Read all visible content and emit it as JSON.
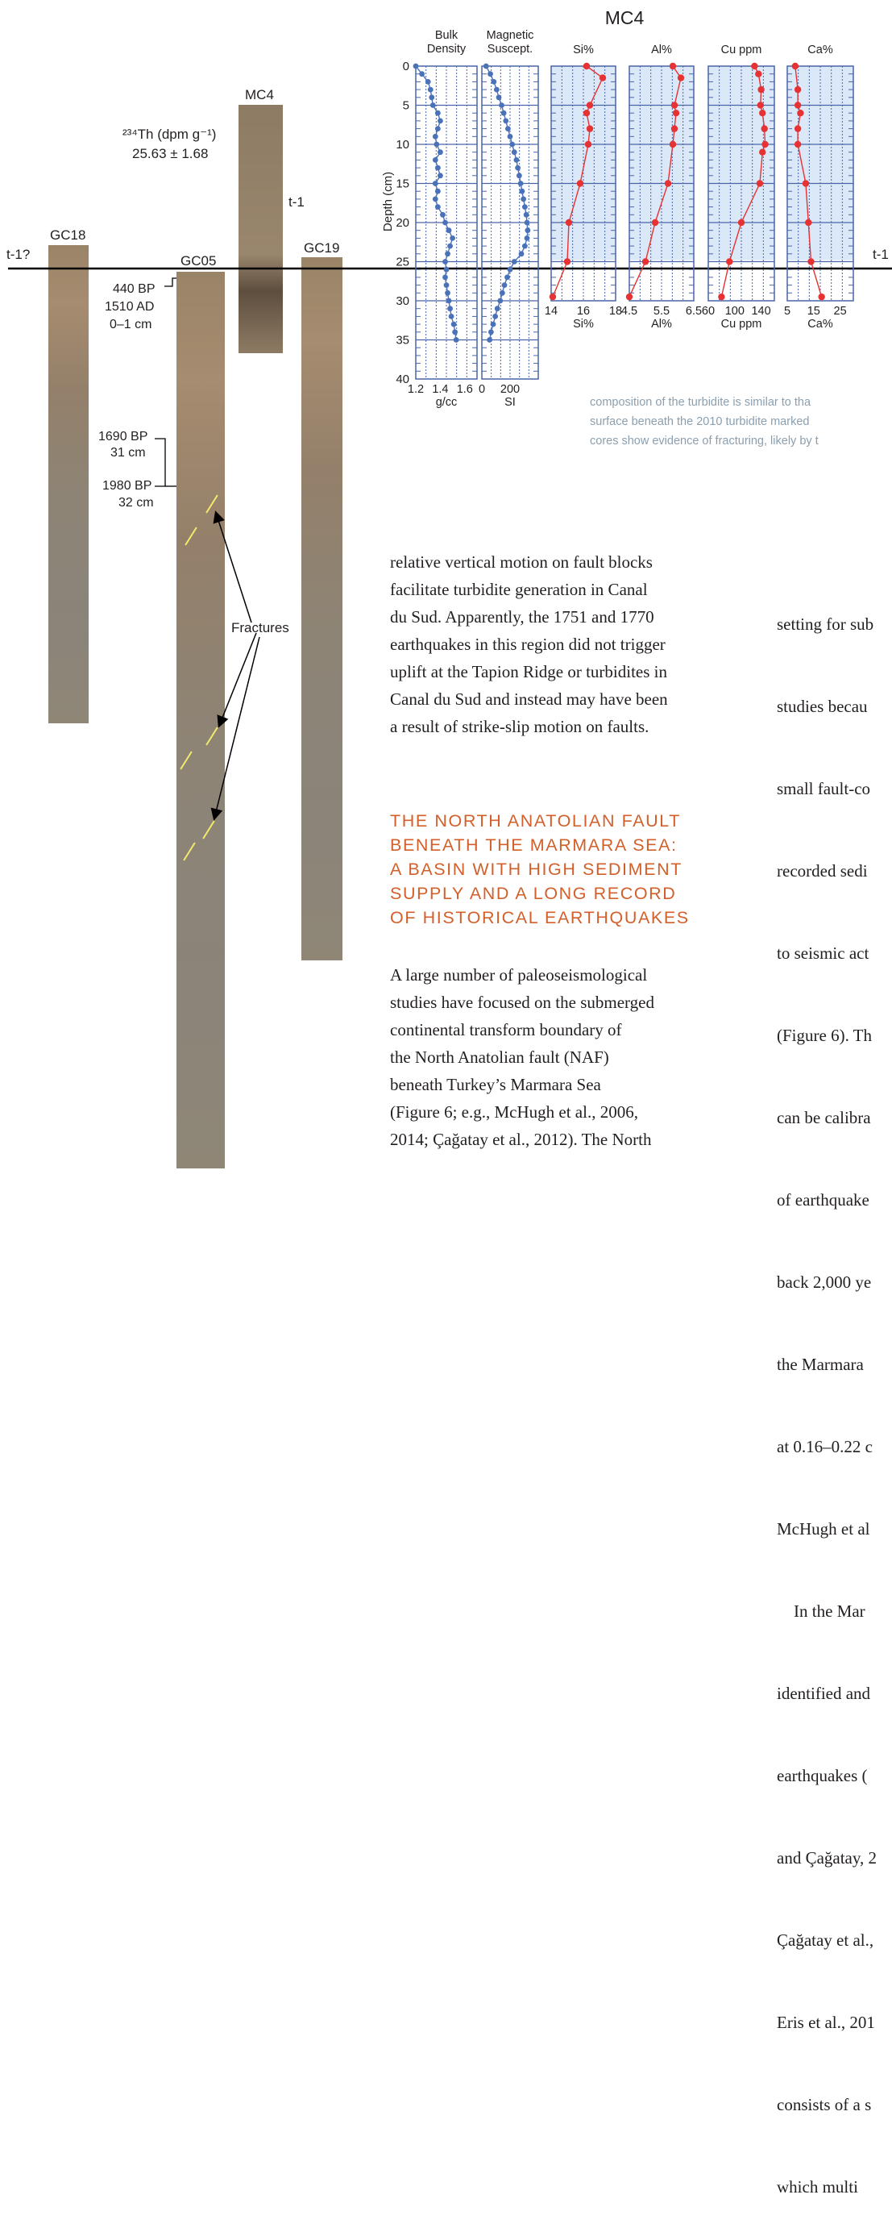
{
  "figure": {
    "cores": {
      "gc18": "GC18",
      "gc05": "GC05",
      "mc4": "MC4",
      "gc19": "GC19"
    },
    "th_label_html": "²³⁴Th (dpm g⁻¹)",
    "th_value": "25.63 ± 1.68",
    "t1_mc4": "t-1",
    "t1_left": "t-1?",
    "t1_right": "t-1",
    "age_440": "440 BP",
    "age_1510": "1510 AD",
    "age_0_1": "0–1 cm",
    "age_1690": "1690 BP",
    "age_31": "31 cm",
    "age_1980": "1980 BP",
    "age_32": "32 cm",
    "fractures": "Fractures"
  },
  "chart_data": {
    "type": "line",
    "title": "MC4",
    "ylabel": "Depth (cm)",
    "ylim": [
      0,
      40
    ],
    "y_ticks": [
      "0",
      "5",
      "10",
      "15",
      "20",
      "25",
      "30",
      "35",
      "40"
    ],
    "panels": [
      {
        "name_top": "Bulk\nDensity",
        "xlabel": "g/cc",
        "x_ticks": [
          "1.2",
          "1.4",
          "1.6"
        ],
        "xlim": [
          1.2,
          1.7
        ],
        "color": "#4a72b8",
        "depth": [
          0,
          1,
          2,
          3,
          4,
          5,
          6,
          7,
          8,
          9,
          10,
          11,
          12,
          13,
          14,
          15,
          16,
          17,
          18,
          19,
          20,
          21,
          22,
          23,
          24,
          25,
          26,
          27,
          28,
          29,
          30,
          31,
          32,
          33,
          34,
          35
        ],
        "values": [
          1.2,
          1.25,
          1.3,
          1.32,
          1.33,
          1.34,
          1.38,
          1.4,
          1.38,
          1.36,
          1.37,
          1.4,
          1.36,
          1.38,
          1.4,
          1.36,
          1.38,
          1.36,
          1.38,
          1.42,
          1.44,
          1.47,
          1.5,
          1.48,
          1.46,
          1.44,
          1.45,
          1.44,
          1.45,
          1.46,
          1.47,
          1.48,
          1.49,
          1.51,
          1.52,
          1.53
        ]
      },
      {
        "name_top": "Magnetic\nSuscept.",
        "xlabel": "SI",
        "x_ticks": [
          "0",
          "200"
        ],
        "xlim": [
          0,
          400
        ],
        "color": "#4a72b8",
        "depth": [
          0,
          1,
          2,
          3,
          4,
          5,
          6,
          7,
          8,
          9,
          10,
          11,
          12,
          13,
          14,
          15,
          16,
          17,
          18,
          19,
          20,
          21,
          22,
          23,
          24,
          25,
          26,
          27,
          28,
          29,
          30,
          31,
          32,
          33,
          34,
          35
        ],
        "values": [
          30,
          60,
          85,
          105,
          120,
          140,
          155,
          170,
          185,
          200,
          215,
          230,
          245,
          255,
          265,
          275,
          285,
          295,
          305,
          315,
          320,
          325,
          320,
          305,
          280,
          230,
          200,
          180,
          160,
          145,
          130,
          110,
          95,
          80,
          65,
          55
        ]
      },
      {
        "name_top": "Si%",
        "xlabel": "Si%",
        "x_ticks": [
          "14",
          "16",
          "18"
        ],
        "xlim": [
          14,
          18
        ],
        "color": "#e63232",
        "depth": [
          0,
          1.5,
          5,
          6,
          8,
          10,
          15,
          20,
          25,
          29.5
        ],
        "values": [
          16.2,
          17.2,
          16.4,
          16.2,
          16.4,
          16.3,
          15.8,
          15.1,
          15.0,
          14.1
        ]
      },
      {
        "name_top": "Al%",
        "xlabel": "Al%",
        "x_ticks": [
          "4.5",
          "5.5",
          "6.5"
        ],
        "xlim": [
          4.5,
          6.5
        ],
        "color": "#e63232",
        "depth": [
          0,
          1.5,
          5,
          6,
          8,
          10,
          15,
          20,
          25,
          29.5
        ],
        "values": [
          5.85,
          6.1,
          5.9,
          5.95,
          5.9,
          5.85,
          5.7,
          5.3,
          5.0,
          4.5
        ]
      },
      {
        "name_top": "Cu ppm",
        "xlabel": "Cu ppm",
        "x_ticks": [
          "60",
          "100",
          "140"
        ],
        "xlim": [
          60,
          160
        ],
        "color": "#e63232",
        "depth": [
          0,
          1,
          3,
          5,
          6,
          8,
          10,
          11,
          15,
          20,
          25,
          29.5
        ],
        "values": [
          130,
          136,
          140,
          139,
          142,
          145,
          146,
          142,
          138,
          110,
          92,
          80
        ]
      },
      {
        "name_top": "Ca%",
        "xlabel": "Ca%",
        "x_ticks": [
          "5",
          "15",
          "25"
        ],
        "xlim": [
          5,
          30
        ],
        "color": "#e63232",
        "depth": [
          0,
          3,
          5,
          6,
          8,
          10,
          15,
          20,
          25,
          29.5
        ],
        "values": [
          8,
          9,
          9,
          10,
          9,
          9,
          12,
          13,
          14,
          18
        ]
      }
    ],
    "grid": true
  },
  "caption_lines": [
    "composition of the turbidite is similar to tha",
    "surface beneath the 2010 turbidite marked",
    "cores show evidence of fracturing, likely by t"
  ],
  "col1_para1": [
    "relative vertical motion on fault blocks",
    "facilitate turbidite generation in Canal",
    "du Sud. Apparently, the 1751 and 1770",
    "earthquakes in this region did not trigger",
    "uplift at the Tapion Ridge or turbidites in",
    "Canal du Sud and instead may have been",
    "a result of strike-slip motion on faults."
  ],
  "heading_lines": [
    "The North Anatolian Fault",
    "Beneath the Marmara Sea:",
    "A Basin with High Sediment",
    "Supply and a Long Record",
    "of Historical Earthquakes"
  ],
  "col1_para2": [
    "A large number of paleoseismological",
    "studies have focused on the submerged",
    "continental transform boundary of",
    "the North Anatolian fault (NAF)",
    "beneath Turkey’s Marmara Sea",
    "(Figure 6; e.g., McHugh et al., 2006,",
    "2014; Çağatay et al., 2012). The North"
  ],
  "col2_lines": [
    "setting for sub",
    "studies becau",
    "small fault-co",
    "recorded sedi",
    "to seismic act",
    "(Figure 6). Th",
    "can be calibra",
    "of earthquake",
    "back 2,000 ye",
    "the Marmara",
    "at 0.16–0.22 c",
    "McHugh et al",
    "    In the Mar",
    "identified and",
    "earthquakes (",
    "and Çağatay, 2",
    "Çağatay et al.,",
    "Eris et al., 201",
    "consists of a s",
    "which multi"
  ]
}
